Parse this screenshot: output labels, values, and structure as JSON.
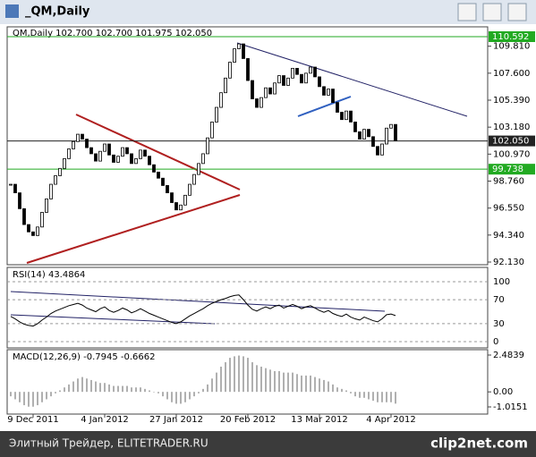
{
  "window_title": "_QM,Daily",
  "footer": {
    "left": "Элитный Трейдер, ELITETRADER.RU",
    "right": "clip2net.com"
  },
  "chart_data": {
    "type": "candlestick",
    "title": "QM,Daily  102.700 102.700 101.975 102.050",
    "close": [
      98.5,
      97.8,
      96.5,
      95.2,
      94.6,
      94.3,
      95.0,
      96.2,
      97.3,
      98.5,
      99.2,
      99.8,
      100.6,
      101.4,
      102.0,
      102.6,
      102.2,
      101.5,
      101.0,
      100.4,
      101.2,
      101.8,
      100.9,
      100.3,
      100.8,
      101.5,
      101.0,
      100.2,
      100.6,
      101.3,
      100.8,
      100.1,
      99.5,
      99.0,
      98.4,
      97.8,
      97.0,
      96.4,
      96.8,
      97.6,
      98.5,
      99.3,
      100.2,
      101.0,
      102.3,
      103.6,
      104.8,
      106.0,
      107.2,
      108.5,
      109.6,
      110.0,
      108.8,
      107.0,
      105.5,
      104.8,
      105.6,
      106.4,
      105.9,
      106.8,
      107.4,
      106.6,
      107.2,
      108.0,
      107.5,
      106.8,
      107.6,
      108.1,
      107.3,
      106.5,
      105.8,
      106.3,
      105.2,
      104.4,
      103.8,
      104.5,
      103.6,
      102.8,
      102.2,
      103.0,
      102.4,
      101.6,
      100.9,
      101.8,
      103.1,
      103.4,
      102.05
    ],
    "ylim": [
      92.13,
      110.592
    ],
    "yticks": [
      {
        "value": 109.81,
        "label": "109.810"
      },
      {
        "value": 107.6,
        "label": "107.600"
      },
      {
        "value": 105.39,
        "label": "105.390"
      },
      {
        "value": 103.18,
        "label": "103.180"
      },
      {
        "value": 100.97,
        "label": "100.970"
      },
      {
        "value": 98.76,
        "label": "98.760"
      },
      {
        "value": 96.55,
        "label": "96.550"
      },
      {
        "value": 94.34,
        "label": "94.340"
      },
      {
        "value": 92.13,
        "label": "92.130"
      }
    ],
    "levels": [
      {
        "value": 110.592,
        "color": "#22aa22"
      },
      {
        "value": 102.05,
        "label": "102.050",
        "color": "#222222"
      },
      {
        "value": 99.738,
        "color": "#22aa22"
      }
    ],
    "xticks": [
      {
        "value": 5,
        "label": "9 Dec 2011"
      },
      {
        "value": 21,
        "label": "4 Jan 2012"
      },
      {
        "value": 37,
        "label": "27 Jan 2012"
      },
      {
        "value": 53,
        "label": "20 Feb 2012"
      },
      {
        "value": 69,
        "label": "13 Mar 2012"
      },
      {
        "value": 85,
        "label": "4 Apr 2012"
      }
    ],
    "rsi": {
      "title": "RSI(14) 43.4864",
      "color": "#000000",
      "values": [
        42,
        38,
        33,
        29,
        27,
        26,
        30,
        36,
        41,
        47,
        51,
        54,
        57,
        60,
        62,
        64,
        61,
        56,
        53,
        50,
        55,
        58,
        52,
        49,
        52,
        56,
        53,
        48,
        51,
        55,
        51,
        47,
        44,
        41,
        38,
        35,
        32,
        30,
        33,
        38,
        43,
        47,
        51,
        55,
        60,
        64,
        67,
        70,
        72,
        75,
        77,
        78,
        70,
        61,
        54,
        51,
        55,
        58,
        55,
        59,
        61,
        56,
        59,
        62,
        59,
        55,
        58,
        60,
        56,
        52,
        49,
        52,
        47,
        44,
        42,
        46,
        41,
        38,
        36,
        41,
        38,
        35,
        33,
        38,
        45,
        46,
        43.4864
      ],
      "ylim": [
        0,
        100
      ],
      "yticks": [
        100,
        70,
        30,
        0
      ]
    },
    "macd": {
      "title": "MACD(12,26,9) -0.7945 -0.6662",
      "color": "#b0b0b0",
      "values": [
        -0.3,
        -0.5,
        -0.7,
        -0.9,
        -1.0,
        -1.0,
        -0.9,
        -0.7,
        -0.5,
        -0.3,
        -0.1,
        0.1,
        0.3,
        0.5,
        0.7,
        0.9,
        1.0,
        0.9,
        0.8,
        0.7,
        0.6,
        0.6,
        0.5,
        0.4,
        0.4,
        0.4,
        0.4,
        0.3,
        0.3,
        0.3,
        0.2,
        0.1,
        0.0,
        -0.1,
        -0.3,
        -0.5,
        -0.7,
        -0.8,
        -0.8,
        -0.7,
        -0.5,
        -0.3,
        -0.1,
        0.2,
        0.5,
        0.9,
        1.3,
        1.7,
        2.0,
        2.3,
        2.4,
        2.45,
        2.4,
        2.3,
        2.0,
        1.8,
        1.7,
        1.6,
        1.5,
        1.4,
        1.4,
        1.3,
        1.3,
        1.3,
        1.2,
        1.1,
        1.1,
        1.1,
        1.0,
        0.9,
        0.8,
        0.7,
        0.5,
        0.3,
        0.2,
        0.1,
        -0.1,
        -0.3,
        -0.4,
        -0.4,
        -0.5,
        -0.6,
        -0.7,
        -0.7,
        -0.7,
        -0.7,
        -0.7945
      ],
      "ylim": [
        -1.0151,
        2.4839
      ],
      "yticks": [
        2.4839,
        {
          "value": 0,
          "label": "0.00"
        },
        -1.0151
      ]
    }
  }
}
